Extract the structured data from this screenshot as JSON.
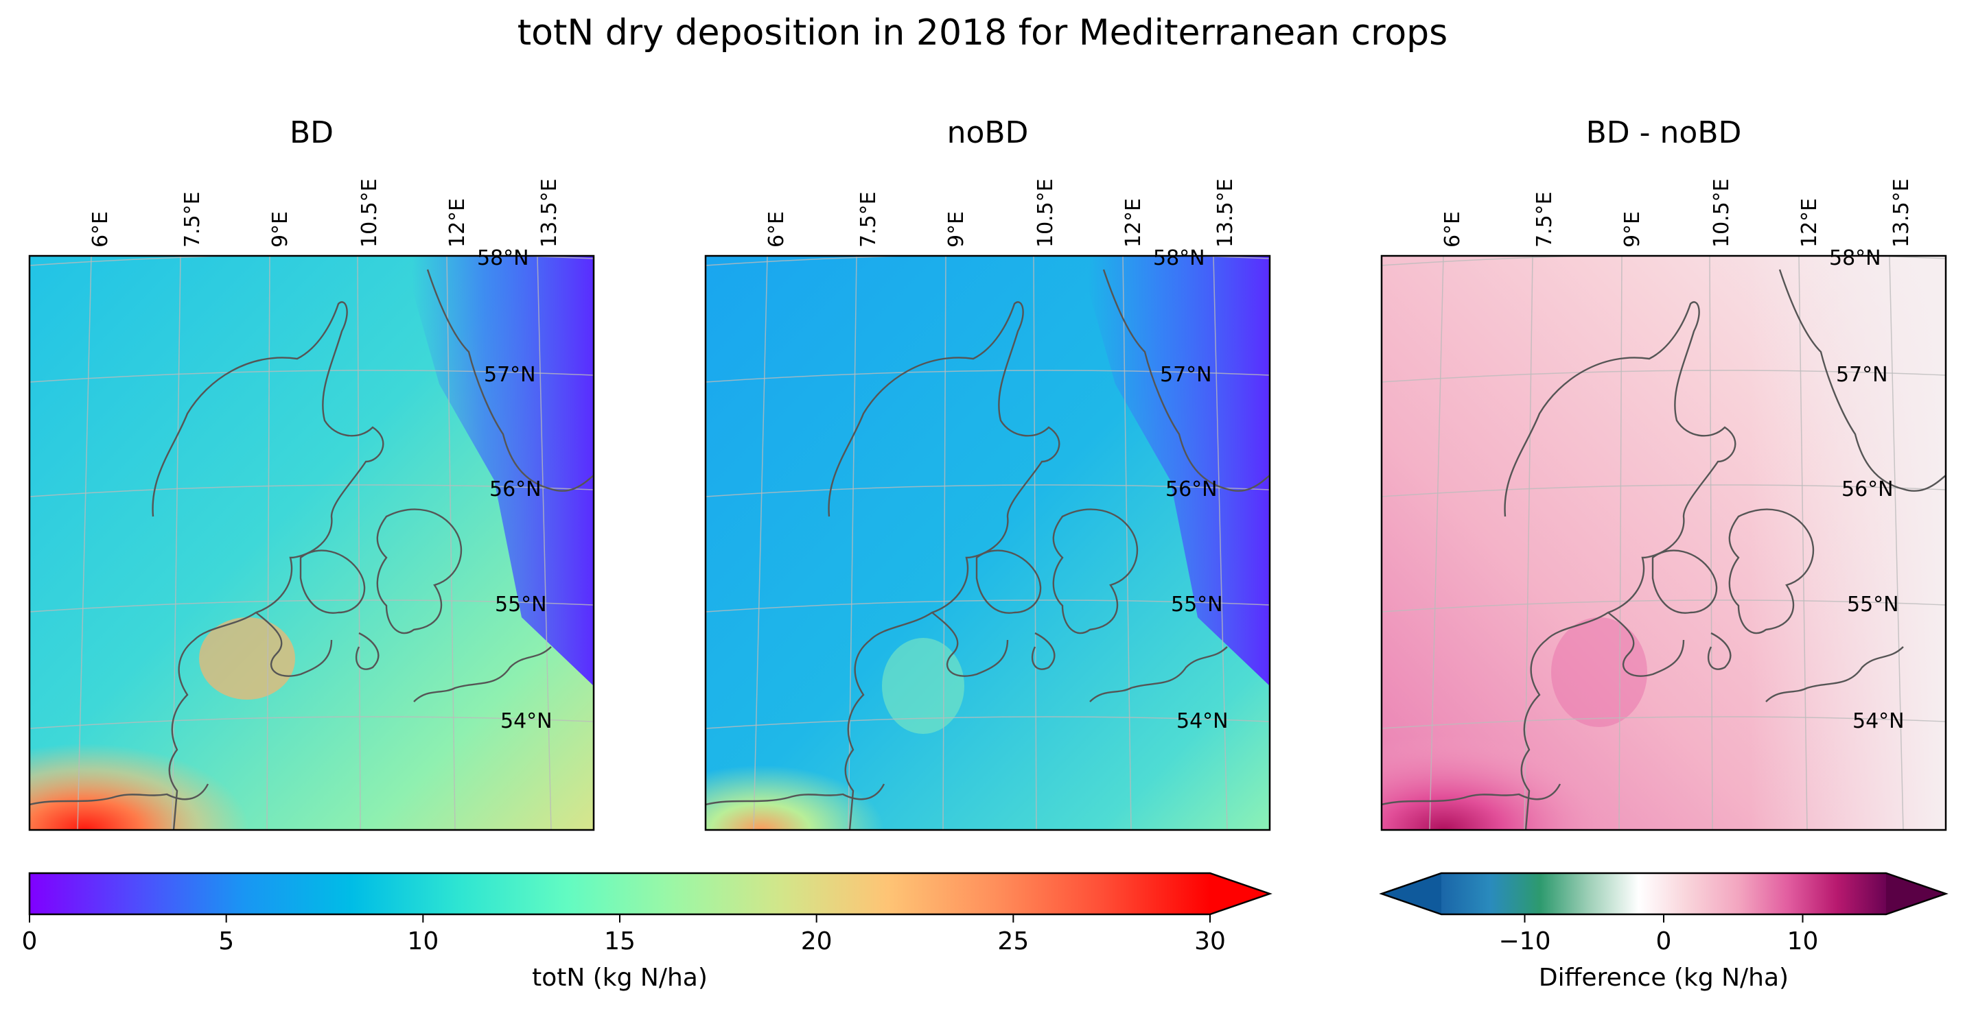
{
  "title": "totN dry deposition in 2018 for Mediterranean crops",
  "panels": [
    {
      "title": "BD",
      "field": "bd",
      "colormap": "rainbow"
    },
    {
      "title": "noBD",
      "field": "nobd",
      "colormap": "rainbow"
    },
    {
      "title": "BD - noBD",
      "field": "diff",
      "colormap": "diverging"
    }
  ],
  "lon_labels": [
    "6°E",
    "7.5°E",
    "9°E",
    "10.5°E",
    "12°E",
    "13.5°E"
  ],
  "lat_labels": [
    "58°N",
    "57°N",
    "56°N",
    "55°N",
    "54°N"
  ],
  "colorbar_main": {
    "label": "totN (kg N/ha)",
    "ticks": [
      "0",
      "5",
      "10",
      "15",
      "20",
      "25",
      "30"
    ],
    "min": 0,
    "max": 30,
    "extend": "max",
    "colors": [
      "#8000ff",
      "#4f4cfd",
      "#1996f3",
      "#00bde6",
      "#2ee5d2",
      "#62fbc2",
      "#9cf7a5",
      "#d2e68a",
      "#fec475",
      "#ff8f5b",
      "#ff4e36",
      "#ff0000"
    ]
  },
  "colorbar_diff": {
    "label": "Difference (kg N/ha)",
    "ticks": [
      "−10",
      "0",
      "10"
    ],
    "min": -16,
    "max": 16,
    "extend": "both",
    "colors": [
      "#1a66a8",
      "#2a8bbd",
      "#2d9a6e",
      "#9fd0b8",
      "#ffffff",
      "#f9d3da",
      "#f3a6c0",
      "#e25ea0",
      "#b8196f",
      "#6b0353"
    ]
  },
  "map_colors": {
    "sea_far": "#5a2cff",
    "sea_mid": "#2a8ff0",
    "base": "#25c3e3",
    "land": "#4fd9d6",
    "hot": "#ff3a2a",
    "warm": "#fcae67",
    "coast": "#555555",
    "grid": "#bbbbbb",
    "diff_base": "#f7d4da",
    "diff_high": "#e56aa6",
    "diff_max": "#b0115f",
    "diff_low": "#f6eef0"
  }
}
